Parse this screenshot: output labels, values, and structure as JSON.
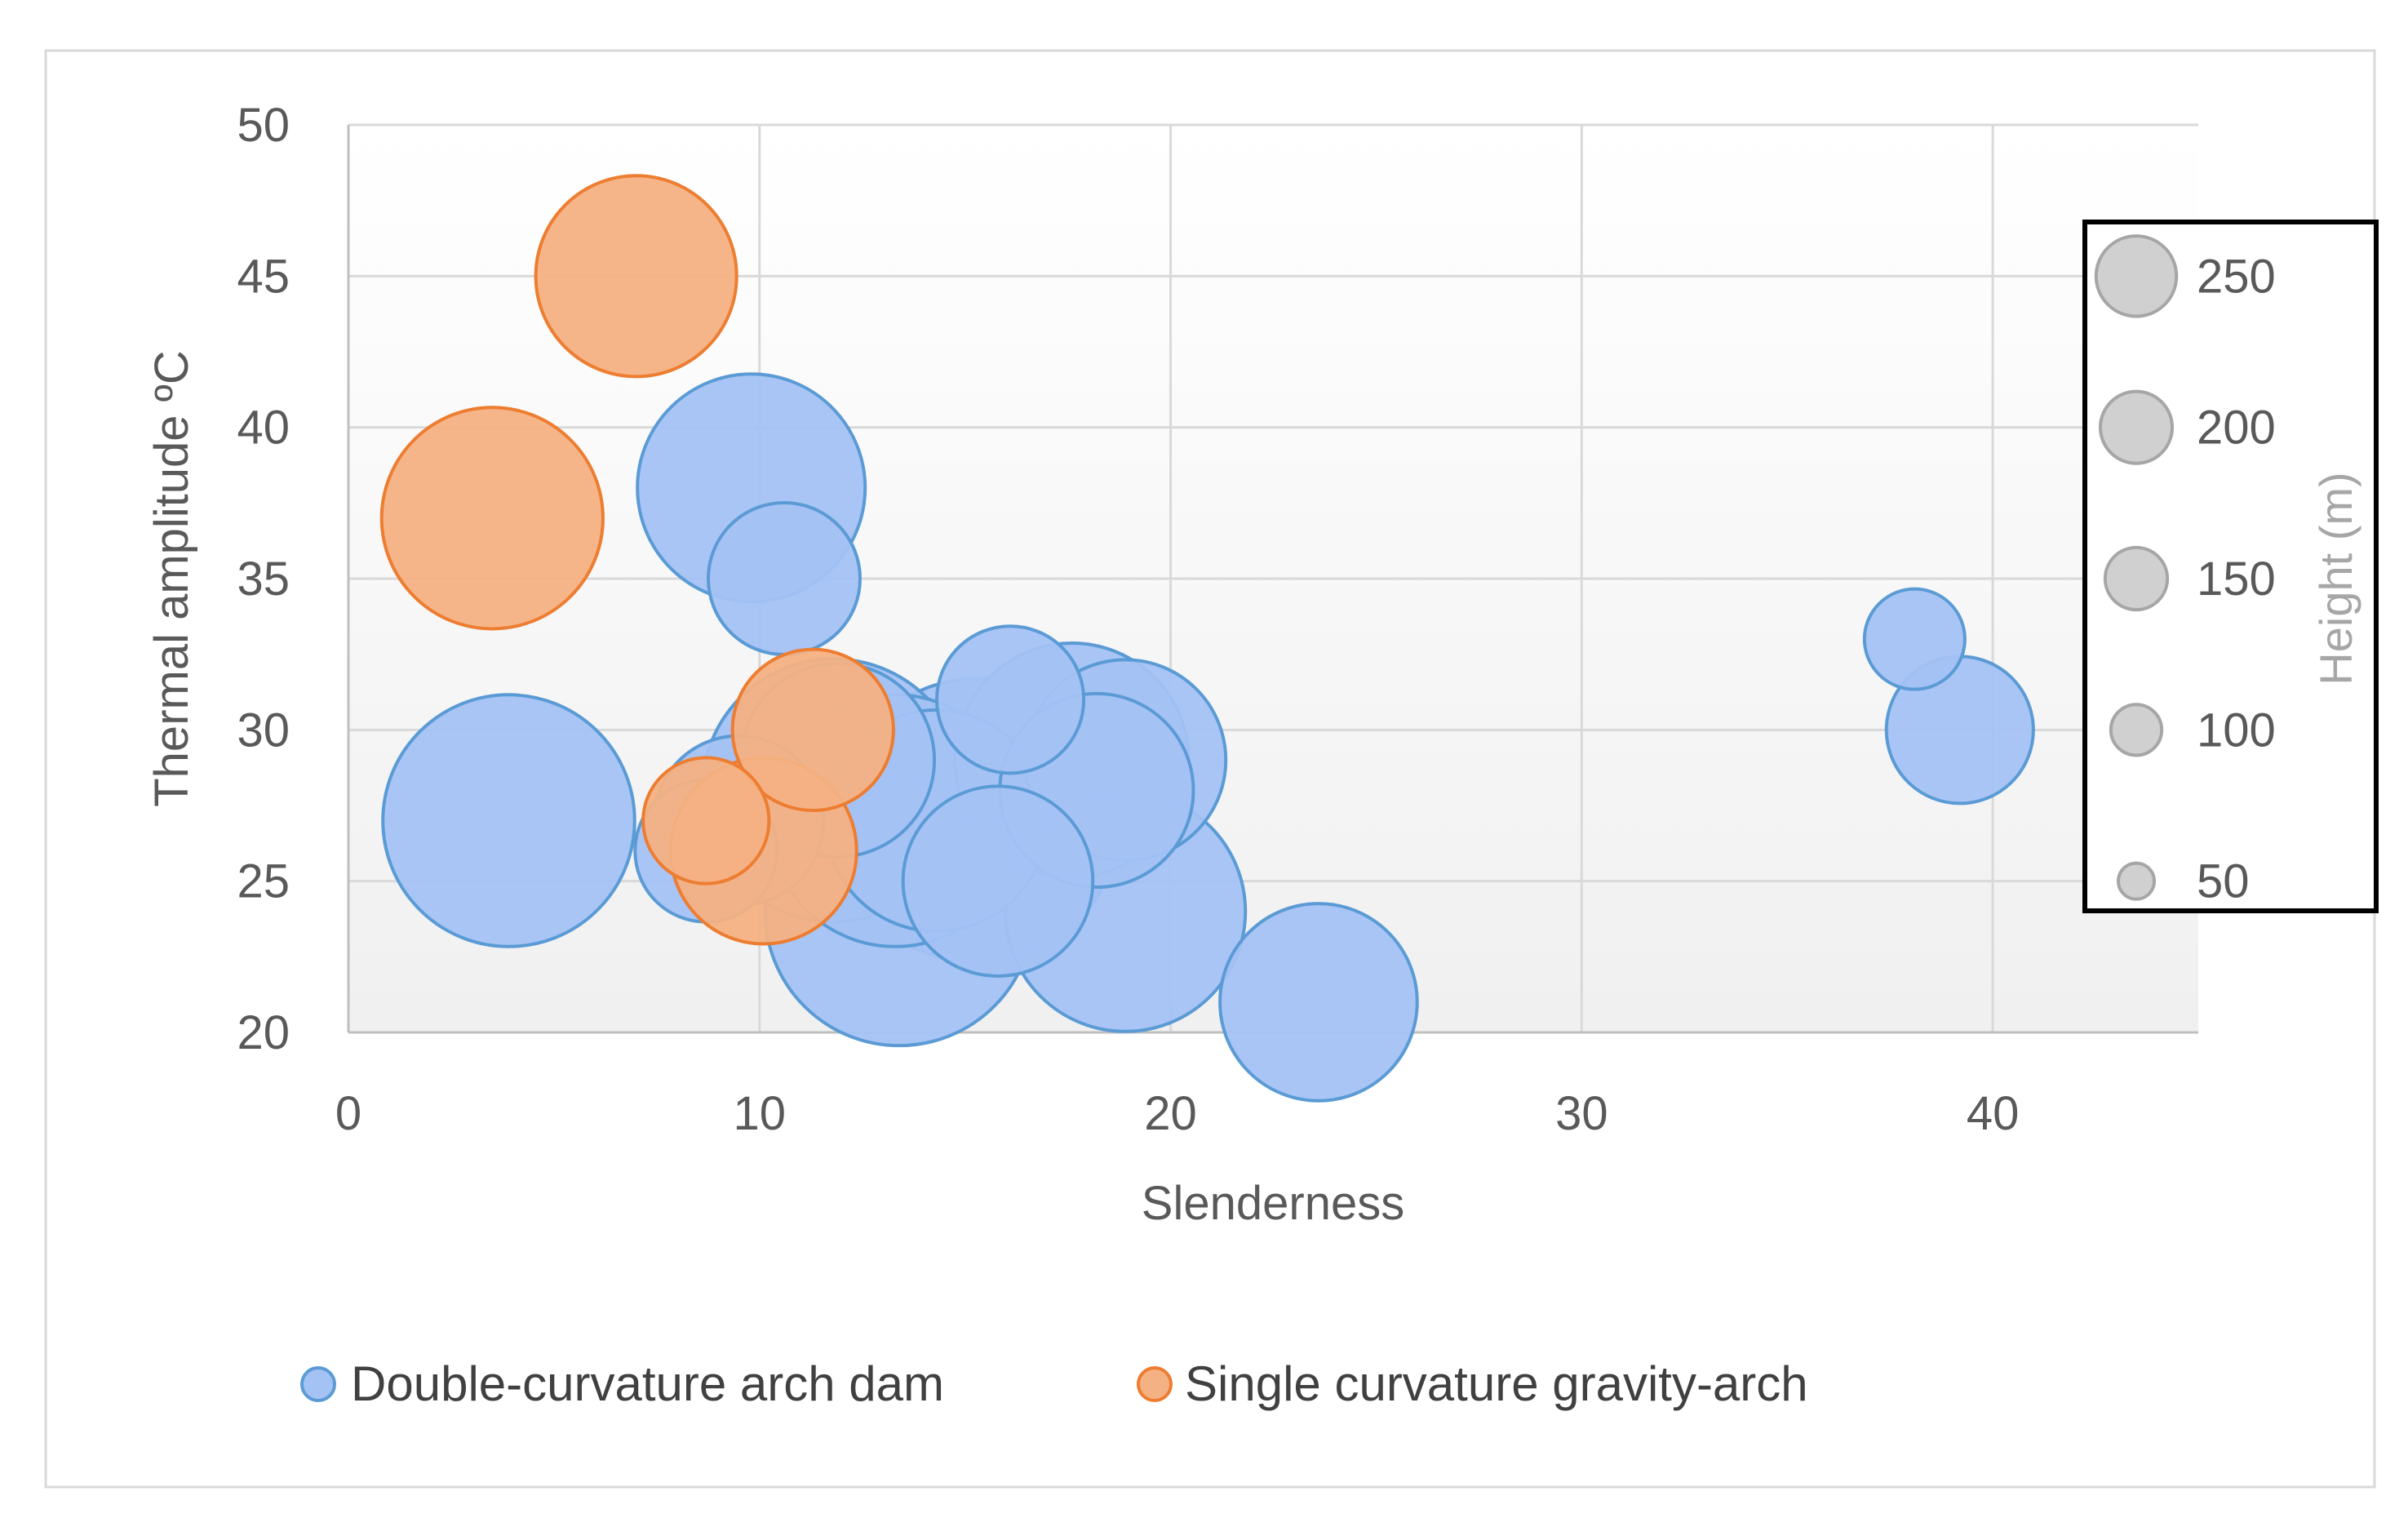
{
  "chart_data": {
    "type": "bubble",
    "title": "",
    "xlabel": "Slenderness",
    "ylabel": "Thermal amplitude ºC",
    "xlim": [
      0,
      45
    ],
    "ylim": [
      20,
      50
    ],
    "x_ticks": [
      "0",
      "10",
      "20",
      "30",
      "40"
    ],
    "y_ticks": [
      "20",
      "25",
      "30",
      "35",
      "40",
      "45",
      "50"
    ],
    "grid": true,
    "legend_position": "bottom",
    "series": [
      {
        "name": "Double-curvature arch dam",
        "color": "#a4c2f4",
        "edge_color": "#5b9bd5",
        "points": [
          {
            "x": 3.9,
            "y": 27,
            "size": 220
          },
          {
            "x": 9.8,
            "y": 38,
            "size": 180
          },
          {
            "x": 10.6,
            "y": 35,
            "size": 80
          },
          {
            "x": 8.7,
            "y": 26,
            "size": 70
          },
          {
            "x": 9.5,
            "y": 27,
            "size": 100
          },
          {
            "x": 11.8,
            "y": 28,
            "size": 240
          },
          {
            "x": 11.9,
            "y": 29,
            "size": 130
          },
          {
            "x": 13.4,
            "y": 24,
            "size": 250
          },
          {
            "x": 13.3,
            "y": 27,
            "size": 220
          },
          {
            "x": 15.3,
            "y": 27,
            "size": 280
          },
          {
            "x": 14.3,
            "y": 27,
            "size": 170
          },
          {
            "x": 15.8,
            "y": 25,
            "size": 125
          },
          {
            "x": 16.1,
            "y": 31,
            "size": 75
          },
          {
            "x": 17.6,
            "y": 29,
            "size": 190
          },
          {
            "x": 18.9,
            "y": 29,
            "size": 140
          },
          {
            "x": 18.2,
            "y": 28,
            "size": 130
          },
          {
            "x": 18.9,
            "y": 24,
            "size": 200
          },
          {
            "x": 23.6,
            "y": 21,
            "size": 135
          },
          {
            "x": 38.1,
            "y": 33,
            "size": 35
          },
          {
            "x": 39.2,
            "y": 30,
            "size": 75
          }
        ]
      },
      {
        "name": "Single curvature gravity-arch",
        "color": "#f4b183",
        "edge_color": "#ed7d31",
        "points": [
          {
            "x": 7.0,
            "y": 45,
            "size": 140
          },
          {
            "x": 3.5,
            "y": 37,
            "size": 170
          },
          {
            "x": 11.3,
            "y": 30,
            "size": 90
          },
          {
            "x": 8.7,
            "y": 27,
            "size": 55
          },
          {
            "x": 10.1,
            "y": 26,
            "size": 120
          }
        ]
      }
    ],
    "size_legend": {
      "title": "Height (m)",
      "values": [
        250,
        200,
        150,
        100,
        50
      ],
      "labels": [
        "250",
        "200",
        "150",
        "100",
        "50"
      ]
    }
  }
}
